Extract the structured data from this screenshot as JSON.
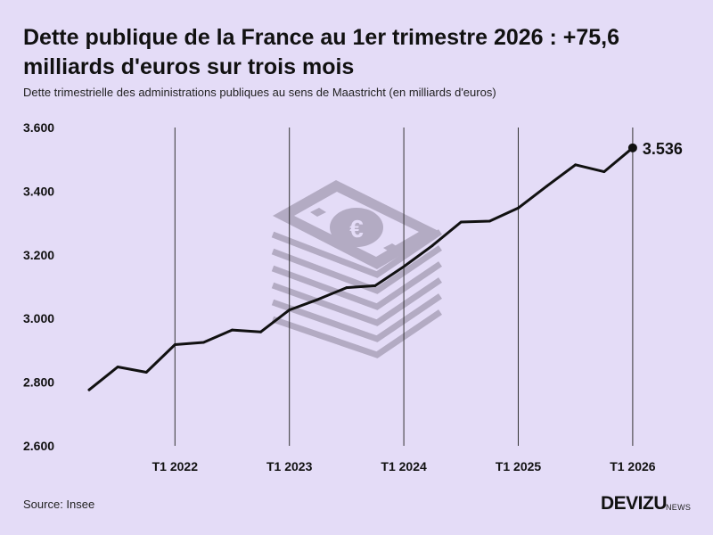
{
  "header": {
    "title": "Dette publique de la France au 1er trimestre 2026 : +75,6 milliards d'euros sur trois mois",
    "subtitle": "Dette trimestrielle des administrations publiques au sens de Maastricht (en milliards d'euros)"
  },
  "footer": {
    "source": "Source: Insee",
    "brand": "DEVIZU",
    "brand_suffix": "NEWS"
  },
  "chart_data": {
    "type": "line",
    "title": "Dette publique de la France au 1er trimestre 2026 : +75,6 milliards d'euros sur trois mois",
    "subtitle": "Dette trimestrielle des administrations publiques au sens de Maastricht (en milliards d'euros)",
    "xlabel": "",
    "ylabel": "",
    "ylim": [
      2600,
      3600
    ],
    "yticks": [
      2600,
      2800,
      3000,
      3200,
      3400,
      3600
    ],
    "ytick_labels": [
      "2.600",
      "2.800",
      "3.000",
      "3.200",
      "3.400",
      "3.600"
    ],
    "xtick_labels": [
      "T1 2022",
      "T1 2023",
      "T1 2024",
      "T1 2025",
      "T1 2026"
    ],
    "grid": "vertical lines at each Q1",
    "series": [
      {
        "quarters": [
          "T2 2021",
          "T3 2021",
          "T4 2021",
          "T1 2022",
          "T2 2022",
          "T3 2022",
          "T4 2022",
          "T1 2023",
          "T2 2023",
          "T3 2023",
          "T4 2023",
          "T1 2024",
          "T2 2024",
          "T3 2024",
          "T4 2024",
          "T1 2025",
          "T2 2025",
          "T3 2025",
          "T4 2025",
          "T1 2026"
        ],
        "values": [
          2776,
          2848,
          2831,
          2918,
          2925,
          2964,
          2958,
          3027,
          3060,
          3097,
          3103,
          3163,
          3229,
          3303,
          3306,
          3347,
          3416,
          3483,
          3461,
          3536
        ]
      }
    ],
    "annotations": [
      {
        "quarter": "T1 2026",
        "label": "3.536"
      }
    ],
    "colors": {
      "line": "#111111",
      "background": "#e4dcf7",
      "gridline": "#333333",
      "illustration": "#b3abc3"
    }
  }
}
